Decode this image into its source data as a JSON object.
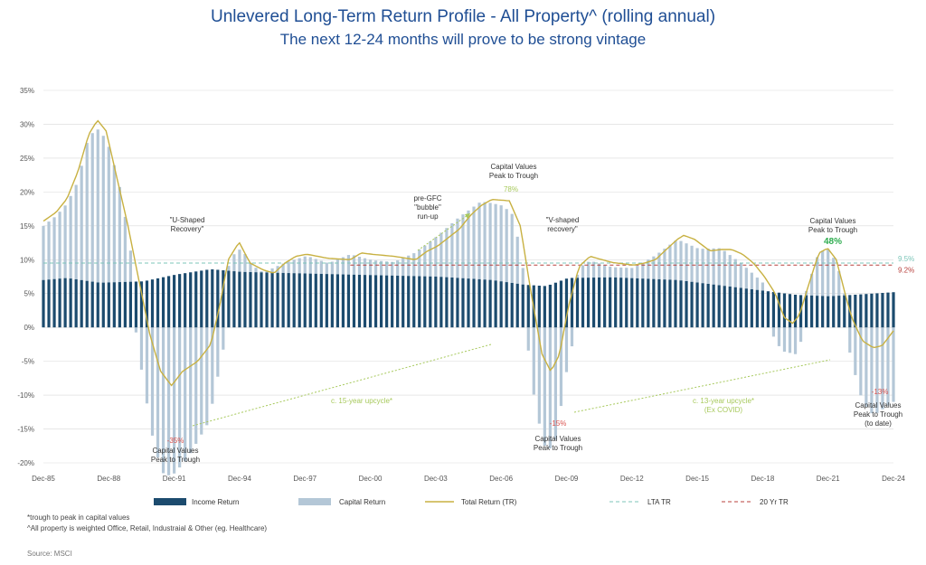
{
  "header": {
    "title": "Unlevered Long-Term Return Profile - All Property^ (rolling annual)",
    "subtitle": "The next 12-24 months will prove to be strong vintage"
  },
  "footnotes": {
    "note1": "*trough to peak in capital values",
    "note2": "^All property is weighted Office, Retail, Industraial & Other (eg. Healthcare)",
    "source": "Source: MSCI"
  },
  "chart_data": {
    "type": "bar",
    "y_ticks": [
      "35%",
      "30%",
      "25%",
      "20%",
      "15%",
      "10%",
      "5%",
      "0%",
      "-5%",
      "-10%",
      "-15%",
      "-20%"
    ],
    "ylim": [
      -20,
      35
    ],
    "x_ticks": [
      "Dec-85",
      "Dec-88",
      "Dec-91",
      "Dec-94",
      "Dec-97",
      "Dec-00",
      "Dec-03",
      "Dec-06",
      "Dec-09",
      "Dec-12",
      "Dec-15",
      "Dec-18",
      "Dec-21",
      "Dec-24"
    ],
    "x_range": [
      1985.92,
      2024.92
    ],
    "grid": true,
    "legend_position": "bottom",
    "legend": {
      "income": "Income Return",
      "capital": "Capital Return",
      "total": "Total Return (TR)",
      "lta": "LTA TR",
      "twenty": "20 Yr TR"
    },
    "colors": {
      "income": "#1c4b6e",
      "capital": "#b4c7d7",
      "total": "#c8b142",
      "lta": "#7cc5b8",
      "twenty": "#b8413d",
      "annot_green": "#a7c95c",
      "annot_red": "#d9534f",
      "annot_bright_green": "#2eac4f"
    },
    "reference_lines": {
      "lta": 9.5,
      "twenty": 9.2,
      "twenty_start": 2000.0
    },
    "ref_labels": {
      "lta": "9.5%",
      "twenty": "9.2%"
    },
    "income_keys": [
      [
        1985.92,
        7.0
      ],
      [
        1987.0,
        7.3
      ],
      [
        1988.5,
        6.6
      ],
      [
        1990.5,
        6.8
      ],
      [
        1992.0,
        7.8
      ],
      [
        1993.6,
        8.6
      ],
      [
        1995.0,
        8.2
      ],
      [
        2000.0,
        7.8
      ],
      [
        2004.0,
        7.5
      ],
      [
        2006.5,
        7.0
      ],
      [
        2008.0,
        6.3
      ],
      [
        2009.0,
        6.1
      ],
      [
        2010.0,
        7.3
      ],
      [
        2012.0,
        7.4
      ],
      [
        2015.0,
        7.0
      ],
      [
        2018.0,
        5.8
      ],
      [
        2019.5,
        5.2
      ],
      [
        2020.5,
        4.8
      ],
      [
        2022.0,
        4.6
      ],
      [
        2023.5,
        4.9
      ],
      [
        2024.92,
        5.2
      ]
    ],
    "capital_keys": [
      [
        1985.92,
        8.0
      ],
      [
        1986.5,
        9.3
      ],
      [
        1987.0,
        11.0
      ],
      [
        1987.5,
        14.5
      ],
      [
        1988.0,
        21.5
      ],
      [
        1988.5,
        22.8
      ],
      [
        1989.0,
        19.5
      ],
      [
        1989.5,
        13.0
      ],
      [
        1990.0,
        3.0
      ],
      [
        1990.5,
        -8.0
      ],
      [
        1991.0,
        -17.5
      ],
      [
        1991.4,
        -21.5
      ],
      [
        1991.8,
        -22.0
      ],
      [
        1992.5,
        -19.5
      ],
      [
        1993.5,
        -14.0
      ],
      [
        1994.0,
        -6.0
      ],
      [
        1994.5,
        2.0
      ],
      [
        1995.0,
        3.5
      ],
      [
        1995.5,
        1.0
      ],
      [
        1996.0,
        0.0
      ],
      [
        1997.0,
        1.5
      ],
      [
        1998.0,
        2.6
      ],
      [
        1999.0,
        1.6
      ],
      [
        2000.0,
        3.0
      ],
      [
        2001.0,
        2.2
      ],
      [
        2002.0,
        2.0
      ],
      [
        2003.0,
        3.5
      ],
      [
        2004.0,
        6.0
      ],
      [
        2005.0,
        9.0
      ],
      [
        2006.0,
        11.5
      ],
      [
        2007.0,
        11.2
      ],
      [
        2007.5,
        10.0
      ],
      [
        2008.0,
        1.0
      ],
      [
        2008.5,
        -12.0
      ],
      [
        2009.0,
        -18.5
      ],
      [
        2009.4,
        -17.0
      ],
      [
        2010.0,
        -5.0
      ],
      [
        2010.5,
        1.5
      ],
      [
        2011.0,
        2.5
      ],
      [
        2012.0,
        1.5
      ],
      [
        2013.0,
        1.5
      ],
      [
        2014.0,
        3.5
      ],
      [
        2015.0,
        6.0
      ],
      [
        2016.0,
        5.0
      ],
      [
        2017.0,
        5.5
      ],
      [
        2018.0,
        3.5
      ],
      [
        2019.0,
        1.0
      ],
      [
        2019.8,
        -3.5
      ],
      [
        2020.5,
        -4.0
      ],
      [
        2021.0,
        1.5
      ],
      [
        2021.5,
        6.5
      ],
      [
        2022.0,
        7.0
      ],
      [
        2022.5,
        3.0
      ],
      [
        2023.0,
        -5.0
      ],
      [
        2023.5,
        -11.0
      ],
      [
        2024.0,
        -13.0
      ],
      [
        2024.92,
        -11.0
      ]
    ],
    "total_keys": [
      [
        1985.92,
        15.7
      ],
      [
        1986.5,
        17.0
      ],
      [
        1987.0,
        19.0
      ],
      [
        1987.5,
        23.0
      ],
      [
        1988.0,
        28.5
      ],
      [
        1988.4,
        30.6
      ],
      [
        1988.8,
        29.0
      ],
      [
        1989.3,
        22.0
      ],
      [
        1989.8,
        15.0
      ],
      [
        1990.3,
        7.0
      ],
      [
        1990.8,
        -1.0
      ],
      [
        1991.3,
        -6.5
      ],
      [
        1991.8,
        -8.6
      ],
      [
        1992.3,
        -6.5
      ],
      [
        1993.0,
        -5.0
      ],
      [
        1993.6,
        -2.5
      ],
      [
        1994.0,
        3.0
      ],
      [
        1994.4,
        10.0
      ],
      [
        1994.9,
        12.6
      ],
      [
        1995.4,
        9.5
      ],
      [
        1996.0,
        8.5
      ],
      [
        1996.5,
        8.0
      ],
      [
        1997.0,
        9.5
      ],
      [
        1997.5,
        10.5
      ],
      [
        1998.0,
        10.8
      ],
      [
        1999.0,
        10.2
      ],
      [
        2000.0,
        10.0
      ],
      [
        2000.5,
        11.0
      ],
      [
        2001.0,
        10.8
      ],
      [
        2002.0,
        10.5
      ],
      [
        2003.0,
        10.0
      ],
      [
        2003.5,
        11.2
      ],
      [
        2004.0,
        12.0
      ],
      [
        2005.0,
        14.5
      ],
      [
        2005.5,
        16.5
      ],
      [
        2006.0,
        18.0
      ],
      [
        2006.5,
        18.9
      ],
      [
        2007.3,
        18.7
      ],
      [
        2007.8,
        15.0
      ],
      [
        2008.3,
        5.0
      ],
      [
        2008.8,
        -4.0
      ],
      [
        2009.2,
        -6.5
      ],
      [
        2009.6,
        -4.0
      ],
      [
        2010.0,
        3.0
      ],
      [
        2010.5,
        9.0
      ],
      [
        2011.0,
        10.5
      ],
      [
        2012.0,
        9.6
      ],
      [
        2013.0,
        9.2
      ],
      [
        2013.5,
        9.5
      ],
      [
        2014.0,
        10.0
      ],
      [
        2014.5,
        11.5
      ],
      [
        2015.0,
        13.0
      ],
      [
        2015.3,
        13.6
      ],
      [
        2015.8,
        13.0
      ],
      [
        2016.5,
        11.3
      ],
      [
        2017.0,
        11.5
      ],
      [
        2017.5,
        11.5
      ],
      [
        2018.0,
        10.8
      ],
      [
        2018.5,
        9.5
      ],
      [
        2019.0,
        7.5
      ],
      [
        2019.5,
        5.0
      ],
      [
        2019.9,
        1.5
      ],
      [
        2020.3,
        0.6
      ],
      [
        2020.6,
        1.8
      ],
      [
        2021.0,
        6.0
      ],
      [
        2021.5,
        11.0
      ],
      [
        2021.9,
        11.7
      ],
      [
        2022.3,
        10.0
      ],
      [
        2022.7,
        5.0
      ],
      [
        2023.0,
        1.5
      ],
      [
        2023.5,
        -2.0
      ],
      [
        2024.0,
        -3.0
      ],
      [
        2024.4,
        -2.7
      ],
      [
        2024.92,
        -0.5
      ]
    ],
    "annotations": {
      "u_shaped": {
        "line1": "\"U-Shaped",
        "line2": "Recovery\""
      },
      "v_shaped": {
        "line1": "\"V-shaped",
        "line2": "recovery\""
      },
      "pre_gfc": {
        "line1": "pre-GFC",
        "line2": "\"bubble\"",
        "line3": "run-up"
      },
      "cv_peak_trough_gfc": {
        "line1": "Capital Values",
        "line2": "Peak to Trough",
        "pct": "78%"
      },
      "cv_peak_trough_21": {
        "line1": "Capital Values",
        "line2": "Peak to Trough",
        "pct": "48%"
      },
      "cv_trough_91": {
        "pct": "-35%",
        "line1": "Capital Values",
        "line2": "Peak to Trough"
      },
      "cv_trough_09": {
        "pct": "-15%",
        "line1": "Capital Values",
        "line2": "Peak to Trough"
      },
      "cv_trough_24": {
        "pct": "-13%",
        "line1": "Capital Values",
        "line2": "Peak to Trough",
        "line3": "(to date)"
      },
      "upcycle_15": {
        "line1": "c. 15-year upcycle*"
      },
      "upcycle_13": {
        "line1": "c. 13-year upcycle*",
        "line2": "(Ex COVID)"
      }
    }
  }
}
